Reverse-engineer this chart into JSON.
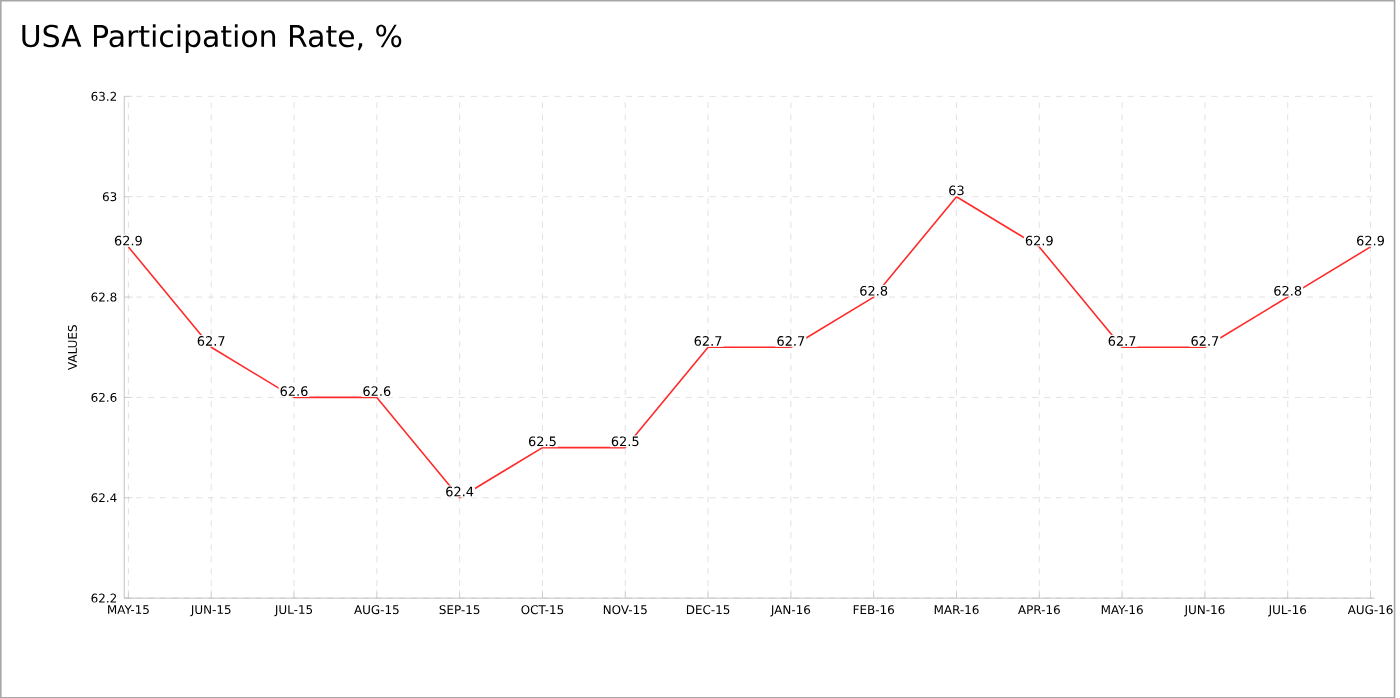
{
  "chart_data": {
    "type": "line",
    "title": "USA Participation Rate, %",
    "ylabel": "VALUES",
    "categories": [
      "MAY-15",
      "JUN-15",
      "JUL-15",
      "AUG-15",
      "SEP-15",
      "OCT-15",
      "NOV-15",
      "DEC-15",
      "JAN-16",
      "FEB-16",
      "MAR-16",
      "APR-16",
      "MAY-16",
      "JUN-16",
      "JUL-16",
      "AUG-16"
    ],
    "series": [
      {
        "color": "#ff2a2a",
        "values": [
          62.9,
          62.7,
          62.6,
          62.6,
          62.4,
          62.5,
          62.5,
          62.7,
          62.7,
          62.8,
          63,
          62.9,
          62.7,
          62.7,
          62.8,
          62.9
        ]
      }
    ],
    "ylim": [
      62.2,
      63.2
    ],
    "yticks": [
      62.2,
      62.4,
      62.6,
      62.8,
      63,
      63.2
    ],
    "grid": true,
    "data_labels": true,
    "marker": "none",
    "line_style": "solid"
  }
}
